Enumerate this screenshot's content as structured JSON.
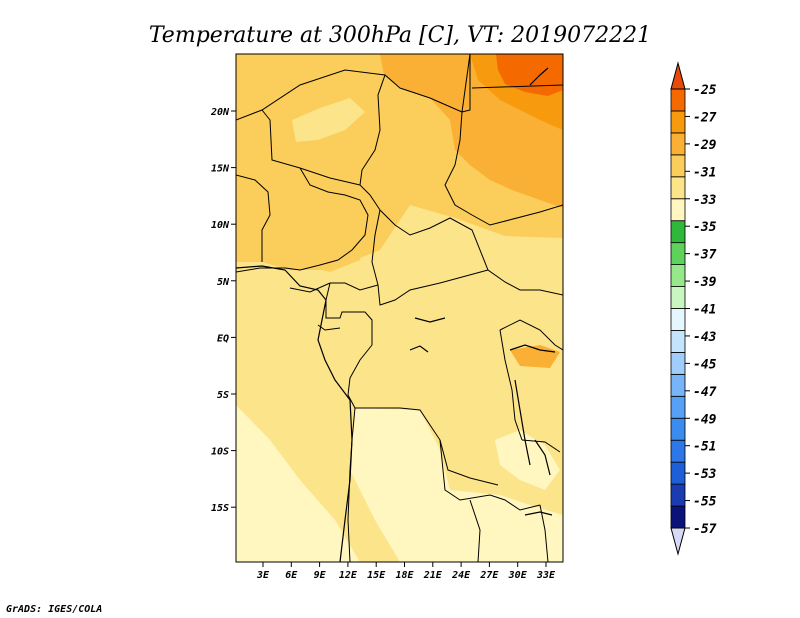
{
  "title": "Temperature at 300hPa [C], VT: 2019072221",
  "credit": "GrADS: IGES/COLA",
  "map": {
    "lon_ticks": [
      "3E",
      "6E",
      "9E",
      "12E",
      "15E",
      "18E",
      "21E",
      "24E",
      "27E",
      "30E",
      "33E"
    ],
    "lat_ticks": [
      "20N",
      "15N",
      "10N",
      "5N",
      "EQ",
      "5S",
      "10S",
      "15S"
    ]
  },
  "colorbar": {
    "labels": [
      "-25",
      "-27",
      "-29",
      "-31",
      "-33",
      "-35",
      "-37",
      "-39",
      "-41",
      "-43",
      "-45",
      "-47",
      "-49",
      "-51",
      "-53",
      "-55",
      "-57"
    ],
    "colors": [
      "#d8d8f8",
      "#0a1478",
      "#1a3cb0",
      "#1e5ed6",
      "#2d78e6",
      "#3c8cf0",
      "#56a0f5",
      "#78b4f8",
      "#a0cdfb",
      "#c4e4fc",
      "#e6f6ff",
      "#c8f5c0",
      "#96e88a",
      "#5ed25a",
      "#2fb83b",
      "#fff6c0",
      "#fce48a",
      "#fbcd5a",
      "#f9b034",
      "#f79a0d",
      "#f56a00",
      "#e84a0a"
    ]
  }
}
